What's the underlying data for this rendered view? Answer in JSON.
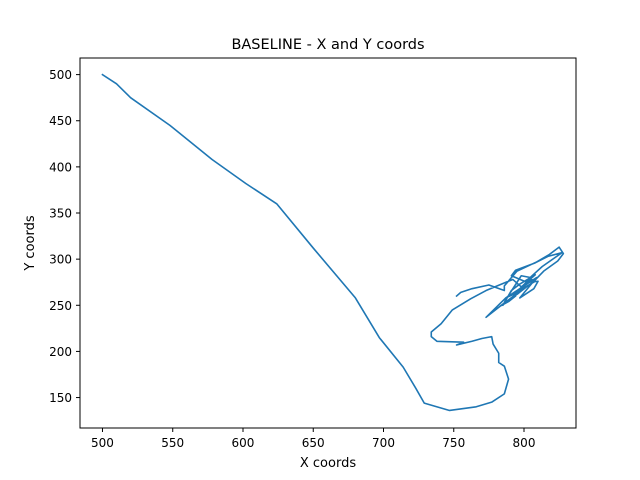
{
  "chart_data": {
    "type": "line",
    "title": "BASELINE - X and Y coords",
    "xlabel": "X coords",
    "ylabel": "Y coords",
    "xlim": [
      484,
      837
    ],
    "ylim": [
      117,
      518
    ],
    "xticks": [
      500,
      550,
      600,
      650,
      700,
      750,
      800
    ],
    "yticks": [
      150,
      200,
      250,
      300,
      350,
      400,
      450,
      500
    ],
    "grid": false,
    "series": [
      {
        "color": "#1f77b4",
        "points": [
          [
            500,
            500
          ],
          [
            510,
            490
          ],
          [
            520,
            475
          ],
          [
            548,
            445
          ],
          [
            578,
            408
          ],
          [
            602,
            382
          ],
          [
            624,
            360
          ],
          [
            650,
            312
          ],
          [
            680,
            258
          ],
          [
            697,
            215
          ],
          [
            714,
            183
          ],
          [
            723,
            160
          ],
          [
            729,
            144
          ],
          [
            747,
            136
          ],
          [
            766,
            140
          ],
          [
            777,
            145
          ],
          [
            786,
            154
          ],
          [
            789,
            170
          ],
          [
            786,
            184
          ],
          [
            782,
            188
          ],
          [
            782,
            198
          ],
          [
            778,
            208
          ],
          [
            777,
            216
          ],
          [
            770,
            214
          ],
          [
            763,
            211
          ],
          [
            752,
            207
          ],
          [
            757,
            210
          ],
          [
            738,
            211
          ],
          [
            734,
            216
          ],
          [
            734,
            221
          ],
          [
            741,
            230
          ],
          [
            749,
            245
          ],
          [
            762,
            257
          ],
          [
            773,
            266
          ],
          [
            792,
            278
          ],
          [
            798,
            270
          ],
          [
            805,
            278
          ],
          [
            808,
            276
          ],
          [
            792,
            262
          ],
          [
            794,
            260
          ],
          [
            789,
            254
          ],
          [
            783,
            249
          ],
          [
            797,
            265
          ],
          [
            787,
            258
          ],
          [
            797,
            268
          ],
          [
            805,
            280
          ],
          [
            798,
            282
          ],
          [
            787,
            256
          ],
          [
            785,
            250
          ],
          [
            791,
            266
          ],
          [
            797,
            273
          ],
          [
            808,
            283
          ],
          [
            802,
            275
          ],
          [
            791,
            282
          ],
          [
            794,
            288
          ],
          [
            808,
            296
          ],
          [
            817,
            303
          ],
          [
            827,
            307
          ],
          [
            813,
            292
          ],
          [
            805,
            281
          ],
          [
            802,
            275
          ],
          [
            810,
            276
          ],
          [
            807,
            268
          ],
          [
            797,
            258
          ],
          [
            809,
            280
          ],
          [
            800,
            271
          ],
          [
            787,
            258
          ],
          [
            773,
            237
          ],
          [
            783,
            249
          ],
          [
            796,
            263
          ],
          [
            807,
            276
          ],
          [
            814,
            287
          ],
          [
            824,
            298
          ],
          [
            828,
            306
          ],
          [
            825,
            313
          ],
          [
            818,
            305
          ],
          [
            809,
            297
          ],
          [
            795,
            287
          ],
          [
            786,
            271
          ],
          [
            786,
            266
          ],
          [
            775,
            272
          ],
          [
            763,
            268
          ],
          [
            755,
            264
          ],
          [
            752,
            260
          ]
        ]
      }
    ]
  }
}
